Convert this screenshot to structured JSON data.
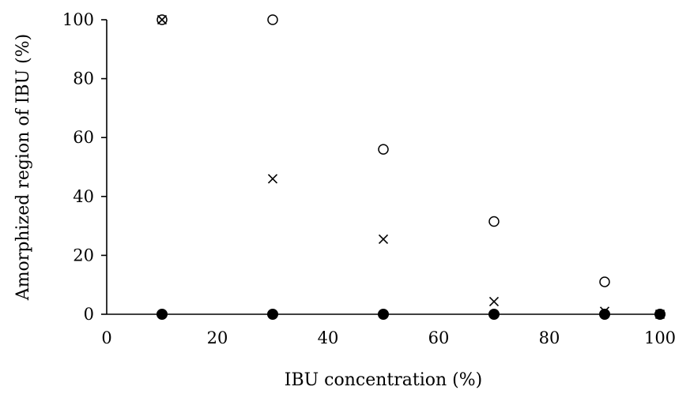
{
  "chart_data": {
    "type": "scatter",
    "title": "",
    "xlabel": "IBU concentration (%)",
    "ylabel": "Amorphized region of IBU (%)",
    "xlim": [
      0,
      100
    ],
    "ylim": [
      0,
      100
    ],
    "xticks": [
      "0",
      "20",
      "40",
      "60",
      "80",
      "100"
    ],
    "yticks": [
      "0",
      "20",
      "40",
      "60",
      "80",
      "100"
    ],
    "grid": false,
    "legend": "none",
    "series": [
      {
        "marker": "open-circle",
        "color": "#000000",
        "x": [
          10,
          30,
          50,
          70,
          90,
          100
        ],
        "y": [
          100,
          100,
          56,
          31.5,
          11,
          0
        ]
      },
      {
        "marker": "cross",
        "color": "#000000",
        "x": [
          10,
          30,
          50,
          70,
          90,
          100
        ],
        "y": [
          100,
          46,
          25.5,
          4.3,
          1,
          0
        ]
      },
      {
        "marker": "filled-circle",
        "color": "#000000",
        "x": [
          10,
          30,
          50,
          70,
          90,
          100
        ],
        "y": [
          0,
          0,
          0,
          0,
          0,
          0
        ]
      }
    ]
  }
}
